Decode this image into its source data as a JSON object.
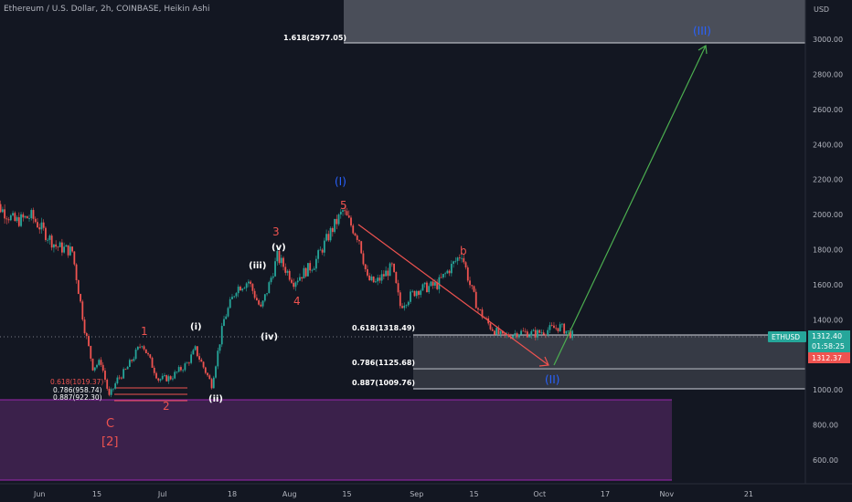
{
  "header": {
    "title": "Ethereum / U.S. Dollar, 2h, COINBASE, Heikin Ashi"
  },
  "axis": {
    "currency": "USD",
    "y_ticks": [
      "600.00",
      "800.00",
      "1000.00",
      "1200.00",
      "1400.00",
      "1600.00",
      "1800.00",
      "2000.00",
      "2200.00",
      "2400.00",
      "2600.00",
      "2800.00",
      "3000.00"
    ],
    "x_ticks": [
      "Jun",
      "15",
      "Jul",
      "18",
      "Aug",
      "15",
      "Sep",
      "15",
      "Oct",
      "17",
      "Nov",
      "21"
    ]
  },
  "price_tag": {
    "symbol": "ETHUSD",
    "price": "1312.40",
    "countdown": "01:58:25",
    "low": "1312.37"
  },
  "fib_levels": {
    "target": "1.618(2977.05)",
    "f618": "0.618(1318.49)",
    "f786": "0.786(1125.68)",
    "f887": "0.887(1009.76)",
    "small_618": "0.618(1019.37)",
    "small_786": "0.786(958.74)",
    "small_887": "0.887(922.30)"
  },
  "wave_labels": {
    "w1": "1",
    "w2": "2",
    "w3": "3",
    "w4": "4",
    "w5": "5",
    "wc": "C",
    "w2big": "[2]",
    "wb": "b",
    "si": "(i)",
    "sii": "(ii)",
    "siii": "(iii)",
    "siv": "(iv)",
    "sv": "(v)",
    "wI": "(I)",
    "wII": "(II)",
    "wIII": "(III)"
  },
  "colors": {
    "background": "#131722",
    "candle_up": "#26a69a",
    "candle_down": "#ef5350",
    "wave_red": "#ef5350",
    "wave_blue": "#2962ff",
    "projection": "#4caf50",
    "support_zone": "#5c2a6e"
  },
  "chart_data": {
    "type": "candlestick",
    "title": "Ethereum / U.S. Dollar, 2h, COINBASE, Heikin Ashi",
    "y_range": [
      500,
      3250
    ],
    "anchors": [
      [
        "2022-05-20",
        2090
      ],
      [
        "2022-05-26",
        1960
      ],
      [
        "2022-05-30",
        1990
      ],
      [
        "2022-06-05",
        1820
      ],
      [
        "2022-06-09",
        1790
      ],
      [
        "2022-06-12",
        1350
      ],
      [
        "2022-06-14",
        1130
      ],
      [
        "2022-06-16",
        1160
      ],
      [
        "2022-06-18",
        960
      ],
      [
        "2022-06-20",
        1060
      ],
      [
        "2022-06-22",
        1110
      ],
      [
        "2022-06-26",
        1270
      ],
      [
        "2022-06-30",
        1060
      ],
      [
        "2022-07-03",
        1070
      ],
      [
        "2022-07-07",
        1150
      ],
      [
        "2022-07-09",
        1230
      ],
      [
        "2022-07-13",
        1030
      ],
      [
        "2022-07-16",
        1400
      ],
      [
        "2022-07-19",
        1580
      ],
      [
        "2022-07-22",
        1620
      ],
      [
        "2022-07-25",
        1460
      ],
      [
        "2022-07-27",
        1600
      ],
      [
        "2022-07-29",
        1760
      ],
      [
        "2022-08-02",
        1620
      ],
      [
        "2022-08-07",
        1720
      ],
      [
        "2022-08-11",
        1900
      ],
      [
        "2022-08-14",
        2020
      ],
      [
        "2022-08-16",
        1940
      ],
      [
        "2022-08-18",
        1860
      ],
      [
        "2022-08-20",
        1630
      ],
      [
        "2022-08-22",
        1610
      ],
      [
        "2022-08-26",
        1700
      ],
      [
        "2022-08-28",
        1480
      ],
      [
        "2022-09-01",
        1570
      ],
      [
        "2022-09-06",
        1600
      ],
      [
        "2022-09-10",
        1720
      ],
      [
        "2022-09-12",
        1780
      ],
      [
        "2022-09-14",
        1600
      ],
      [
        "2022-09-16",
        1460
      ],
      [
        "2022-09-19",
        1360
      ],
      [
        "2022-09-22",
        1300
      ],
      [
        "2022-09-26",
        1330
      ],
      [
        "2022-09-30",
        1320
      ],
      [
        "2022-10-04",
        1350
      ],
      [
        "2022-10-06",
        1360
      ],
      [
        "2022-10-09",
        1312
      ]
    ]
  }
}
